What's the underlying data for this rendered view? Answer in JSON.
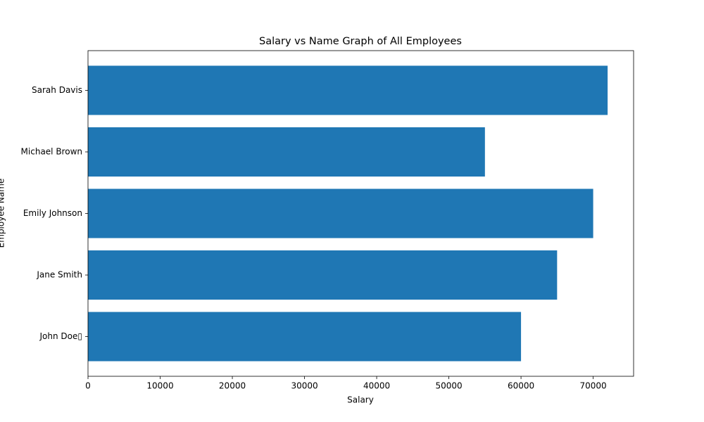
{
  "chart_data": {
    "type": "barh",
    "title": "Salary vs Name Graph of All Employees",
    "x_label": "Salary",
    "y_label": "Employee Name",
    "categories": [
      "John Doe▯",
      "Jane Smith",
      "Emily Johnson",
      "Michael Brown",
      "Sarah Davis"
    ],
    "values": [
      60000,
      65000,
      70000,
      55000,
      72000
    ],
    "color": "#1f77b4",
    "xlim": [
      0,
      75600
    ],
    "xticks": [
      0,
      10000,
      20000,
      30000,
      40000,
      50000,
      60000,
      70000
    ],
    "grid": false
  }
}
